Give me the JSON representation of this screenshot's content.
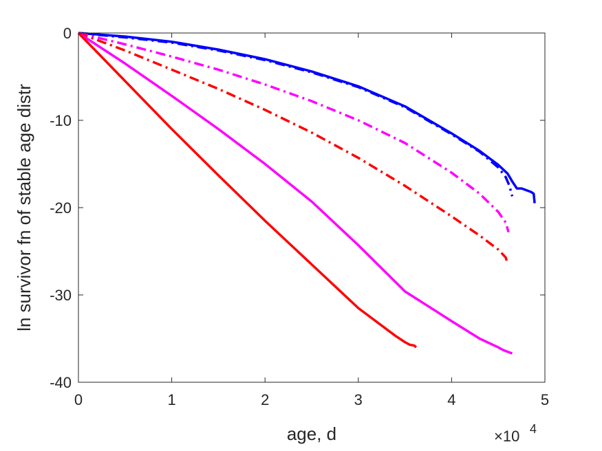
{
  "chart_data": {
    "type": "line",
    "xlabel": "age, d",
    "ylabel": "ln survivor fn of stable age distr",
    "x_multiplier_label": "×10",
    "x_multiplier_exponent": "4",
    "xlim": [
      0,
      50000
    ],
    "ylim": [
      -40,
      0
    ],
    "xticks": [
      "0",
      "1",
      "2",
      "3",
      "4",
      "5"
    ],
    "yticks": [
      "0",
      "-10",
      "-20",
      "-30",
      "-40"
    ],
    "grid": false,
    "legend": "none",
    "series": [
      {
        "color": "#0000ff",
        "style": "solid",
        "x": [
          0,
          5000,
          10000,
          15000,
          20000,
          25000,
          30000,
          35000,
          40000,
          43000,
          45000,
          46000,
          46500,
          47000,
          47500,
          48000,
          48500,
          48800,
          48900
        ],
        "y": [
          0,
          -0.4,
          -1.0,
          -1.9,
          -3.0,
          -4.4,
          -6.1,
          -8.4,
          -11.5,
          -13.5,
          -15.1,
          -16.1,
          -17.0,
          -17.8,
          -17.8,
          -18.0,
          -18.2,
          -18.4,
          -19.5
        ]
      },
      {
        "color": "#0000ff",
        "style": "dashdot",
        "x": [
          0,
          5000,
          10000,
          15000,
          20000,
          25000,
          30000,
          35000,
          40000,
          43000,
          45000,
          45800,
          46200,
          46500
        ],
        "y": [
          0,
          -0.5,
          -1.1,
          -2.0,
          -3.1,
          -4.5,
          -6.2,
          -8.5,
          -11.6,
          -13.6,
          -15.4,
          -16.5,
          -17.5,
          -18.7
        ]
      },
      {
        "color": "#ff00ff",
        "style": "dashdot",
        "x": [
          0,
          5000,
          10000,
          15000,
          20000,
          25000,
          30000,
          35000,
          40000,
          43000,
          45000,
          45800,
          46100
        ],
        "y": [
          0,
          -1.3,
          -2.7,
          -4.2,
          -5.9,
          -7.8,
          -10.0,
          -12.6,
          -16.0,
          -18.4,
          -20.5,
          -21.7,
          -22.8
        ]
      },
      {
        "color": "#ff0000",
        "style": "dashdot",
        "x": [
          0,
          5000,
          10000,
          15000,
          20000,
          25000,
          30000,
          35000,
          40000,
          43000,
          45000,
          45800,
          46000
        ],
        "y": [
          0,
          -2.0,
          -4.2,
          -6.4,
          -8.8,
          -11.4,
          -14.3,
          -17.5,
          -21.0,
          -23.2,
          -24.8,
          -25.7,
          -26.4
        ]
      },
      {
        "color": "#ff00ff",
        "style": "solid",
        "x": [
          0,
          5000,
          10000,
          15000,
          20000,
          25000,
          30000,
          35000,
          40000,
          43000,
          45000,
          45500,
          46000,
          46500
        ],
        "y": [
          0,
          -3.5,
          -7.2,
          -11.0,
          -15.0,
          -19.3,
          -24.3,
          -29.6,
          -33.0,
          -35.0,
          -36.0,
          -36.3,
          -36.5,
          -36.7
        ]
      },
      {
        "color": "#ff0000",
        "style": "solid",
        "x": [
          0,
          5000,
          10000,
          15000,
          20000,
          25000,
          30000,
          34000,
          35000,
          35500,
          36000,
          36200
        ],
        "y": [
          0,
          -5.5,
          -11.0,
          -16.3,
          -21.5,
          -26.5,
          -31.5,
          -34.7,
          -35.4,
          -35.7,
          -35.8,
          -36.0
        ]
      }
    ]
  }
}
